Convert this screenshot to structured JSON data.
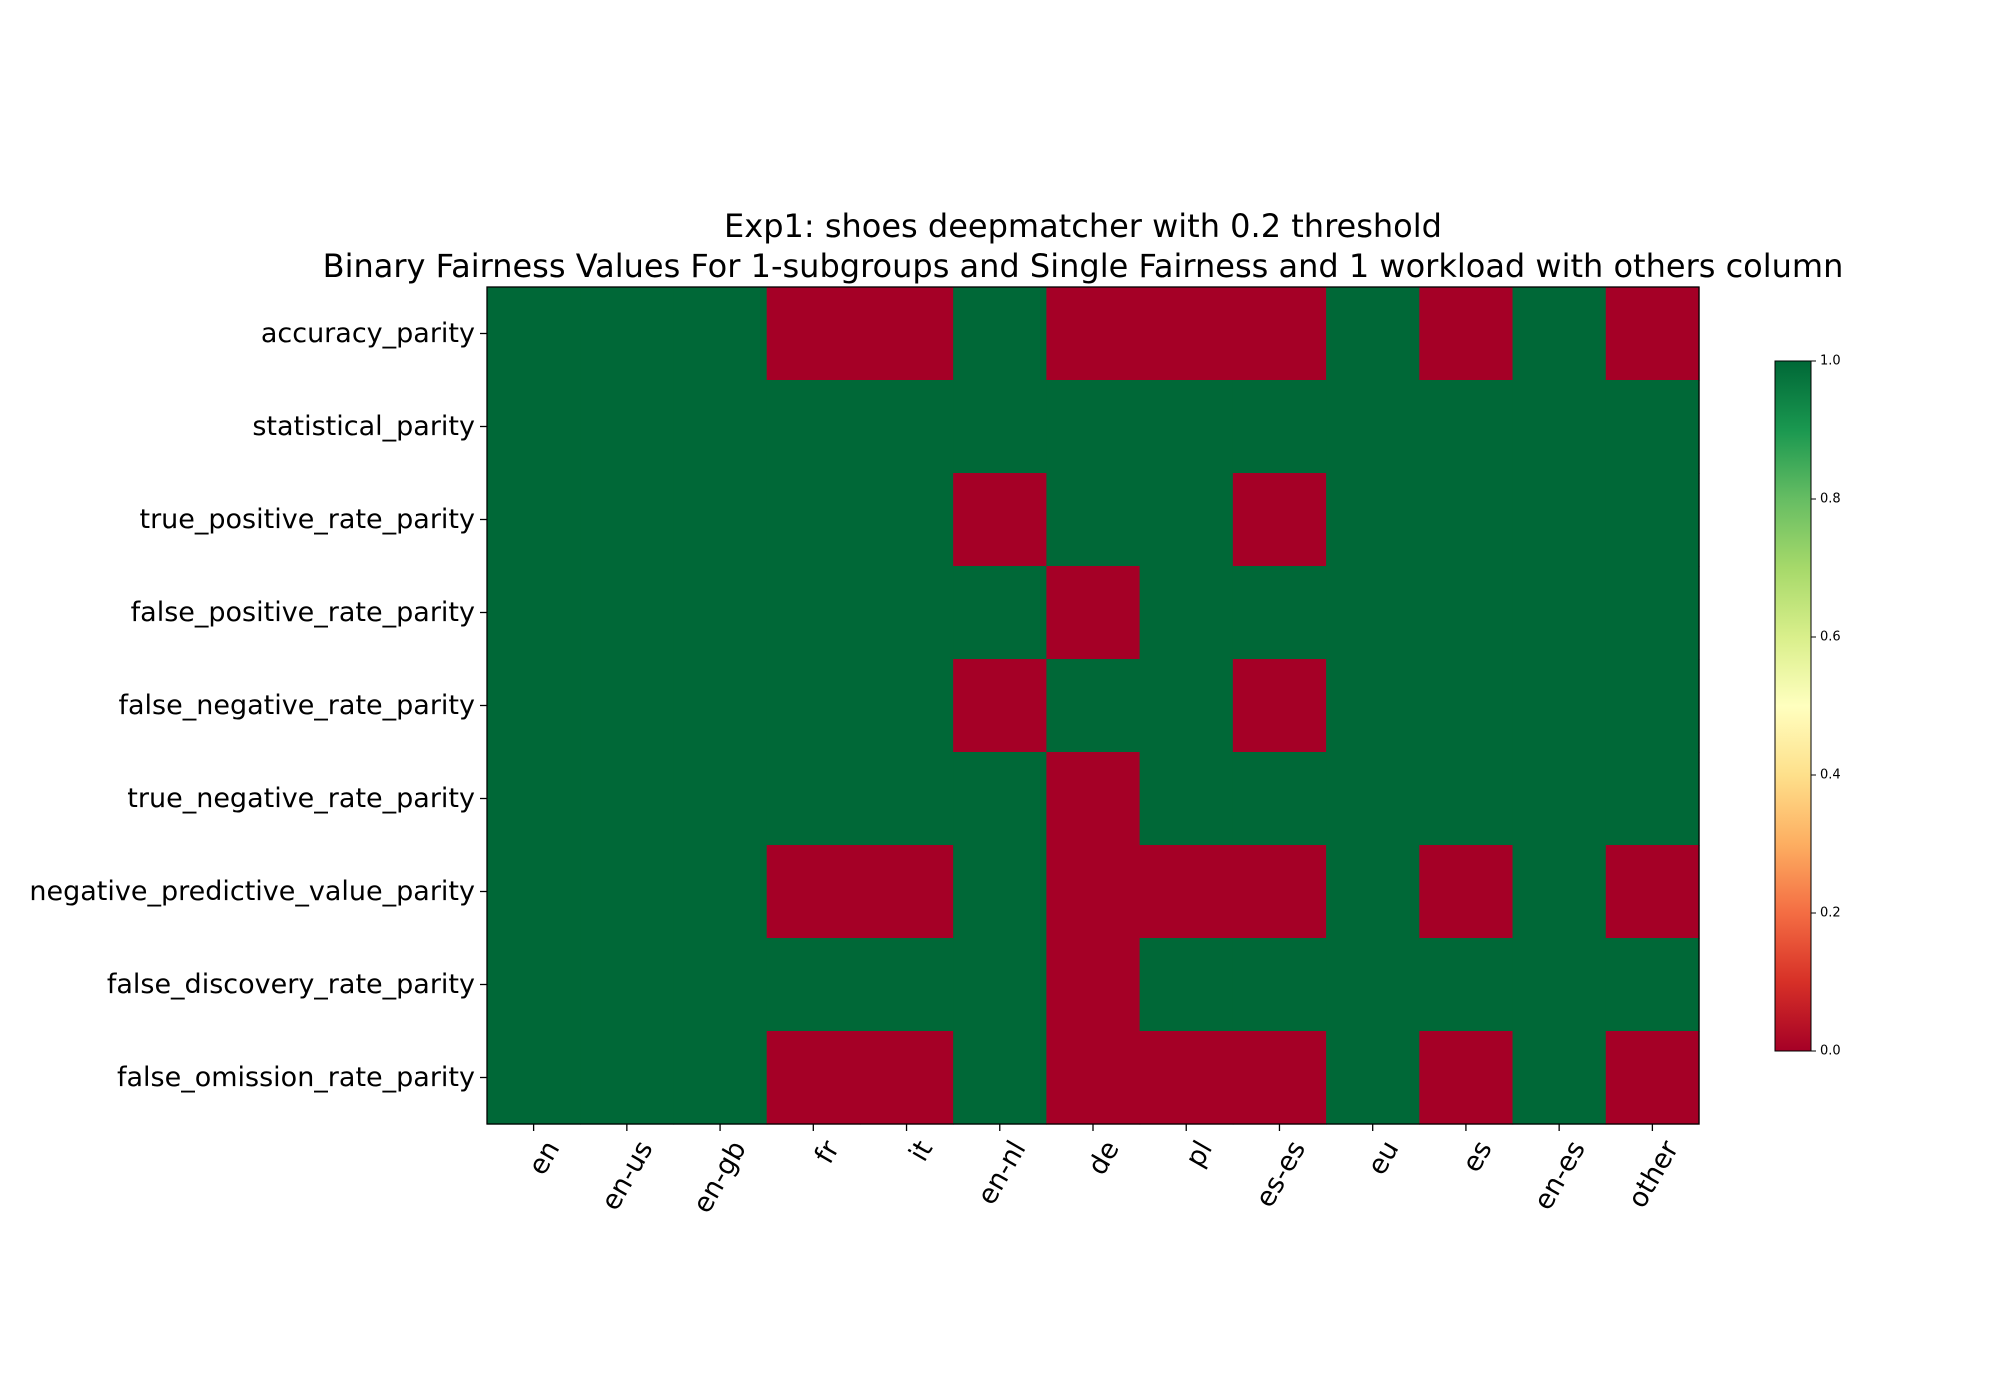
{
  "chart_data": {
    "type": "heatmap",
    "title": "Exp1: shoes deepmatcher with 0.2 threshold",
    "subtitle": "Binary Fairness Values For 1-subgroups and Single Fairness and 1 workload with others column",
    "xlabel": "",
    "ylabel": "",
    "columns": [
      "en",
      "en-us",
      "en-gb",
      "fr",
      "it",
      "en-nl",
      "de",
      "pl",
      "es-es",
      "eu",
      "es",
      "en-es",
      "other"
    ],
    "rows": [
      "accuracy_parity",
      "statistical_parity",
      "true_positive_rate_parity",
      "false_positive_rate_parity",
      "false_negative_rate_parity",
      "true_negative_rate_parity",
      "negative_predictive_value_parity",
      "false_discovery_rate_parity",
      "false_omission_rate_parity"
    ],
    "values": [
      [
        1,
        1,
        1,
        0,
        0,
        1,
        0,
        0,
        0,
        1,
        0,
        1,
        0
      ],
      [
        1,
        1,
        1,
        1,
        1,
        1,
        1,
        1,
        1,
        1,
        1,
        1,
        1
      ],
      [
        1,
        1,
        1,
        1,
        1,
        0,
        1,
        1,
        0,
        1,
        1,
        1,
        1
      ],
      [
        1,
        1,
        1,
        1,
        1,
        1,
        0,
        1,
        1,
        1,
        1,
        1,
        1
      ],
      [
        1,
        1,
        1,
        1,
        1,
        0,
        1,
        1,
        0,
        1,
        1,
        1,
        1
      ],
      [
        1,
        1,
        1,
        1,
        1,
        1,
        0,
        1,
        1,
        1,
        1,
        1,
        1
      ],
      [
        1,
        1,
        1,
        0,
        0,
        1,
        0,
        0,
        0,
        1,
        0,
        1,
        0
      ],
      [
        1,
        1,
        1,
        1,
        1,
        1,
        0,
        1,
        1,
        1,
        1,
        1,
        1
      ],
      [
        1,
        1,
        1,
        0,
        0,
        1,
        0,
        0,
        0,
        1,
        0,
        1,
        0
      ]
    ],
    "colormap": "RdYlGn",
    "color_stops": [
      "#a50026",
      "#d73027",
      "#f46d43",
      "#fdae61",
      "#fee08b",
      "#ffffbf",
      "#d9ef8b",
      "#a6d96a",
      "#66bd63",
      "#1a9850",
      "#006837"
    ],
    "value_range": [
      0,
      1
    ],
    "colorbar_ticks": [
      "0.0",
      "0.2",
      "0.4",
      "0.6",
      "0.8",
      "1.0"
    ],
    "grid": false,
    "colorbar_position": "right"
  }
}
